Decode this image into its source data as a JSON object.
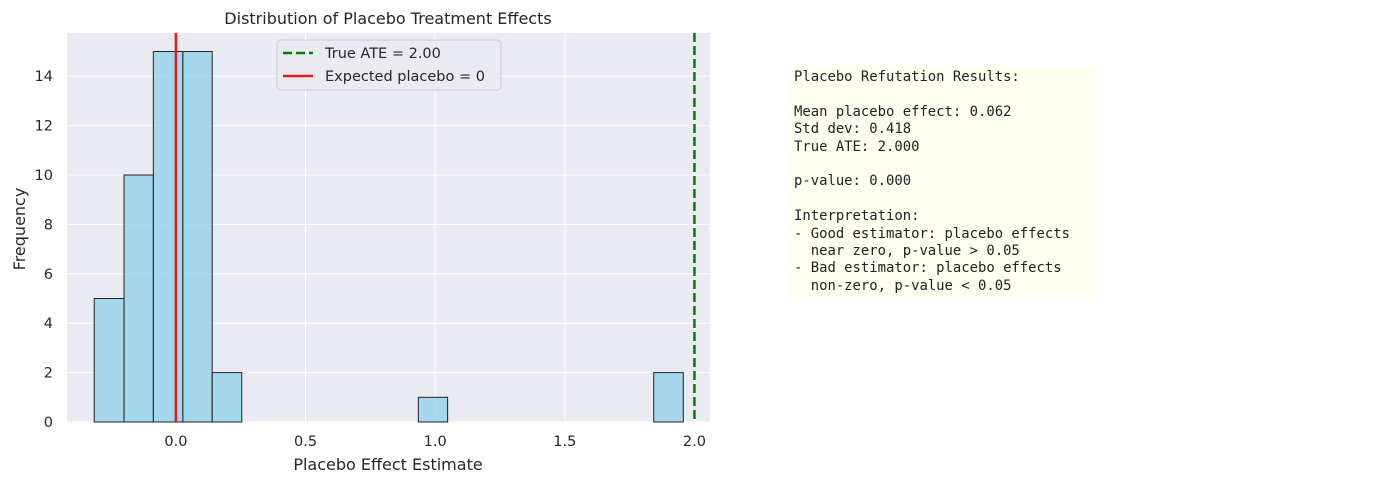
{
  "chart_data": {
    "type": "bar",
    "title": "Distribution of Placebo Treatment Effects",
    "xlabel": "Placebo Effect Estimate",
    "ylabel": "Frequency",
    "xlim": [
      -0.42,
      2.06
    ],
    "ylim": [
      0,
      15.75
    ],
    "xticks": [
      {
        "value": 0.0,
        "label": "0.0"
      },
      {
        "value": 0.5,
        "label": "0.5"
      },
      {
        "value": 1.0,
        "label": "1.0"
      },
      {
        "value": 1.5,
        "label": "1.5"
      },
      {
        "value": 2.0,
        "label": "2.0"
      }
    ],
    "yticks": [
      {
        "value": 0,
        "label": "0"
      },
      {
        "value": 2,
        "label": "2"
      },
      {
        "value": 4,
        "label": "4"
      },
      {
        "value": 6,
        "label": "6"
      },
      {
        "value": 8,
        "label": "8"
      },
      {
        "value": 10,
        "label": "10"
      },
      {
        "value": 12,
        "label": "12"
      },
      {
        "value": 14,
        "label": "14"
      }
    ],
    "bins": [
      {
        "x0": -0.315,
        "x1": -0.2,
        "count": 5
      },
      {
        "x0": -0.2,
        "x1": -0.087,
        "count": 10
      },
      {
        "x0": -0.087,
        "x1": 0.027,
        "count": 15
      },
      {
        "x0": 0.027,
        "x1": 0.14,
        "count": 15
      },
      {
        "x0": 0.14,
        "x1": 0.254,
        "count": 2
      },
      {
        "x0": 0.935,
        "x1": 1.048,
        "count": 1
      },
      {
        "x0": 1.843,
        "x1": 1.957,
        "count": 2
      }
    ],
    "reference_lines": [
      {
        "name": "True ATE = 2.00",
        "x": 2.0,
        "color": "#008000",
        "style": "dashed"
      },
      {
        "name": "Expected placebo = 0",
        "x": 0.0,
        "color": "#e41a1c",
        "style": "solid"
      }
    ],
    "bar_color": "#87ceeb",
    "grid": true,
    "legend_position": "top-center"
  },
  "results": {
    "lines": [
      "Placebo Refutation Results:",
      "",
      "Mean placebo effect: 0.062",
      "Std dev: 0.418",
      "True ATE: 2.000",
      "",
      "p-value: 0.000",
      "",
      "Interpretation:",
      "- Good estimator: placebo effects",
      "  near zero, p-value > 0.05",
      "- Bad estimator: placebo effects",
      "  non-zero, p-value < 0.05"
    ]
  }
}
